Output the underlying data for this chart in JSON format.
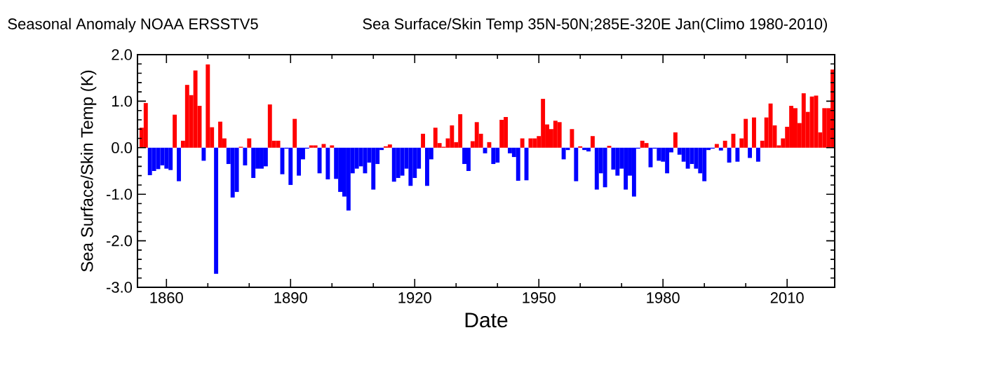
{
  "chart_data": {
    "type": "bar",
    "title": "Seasonal Anomaly NOAA ERSSTV5",
    "subtitle": "Sea Surface/Skin Temp 35N-50N;285E-320E Jan(Climo 1980-2010)",
    "xlabel": "Date",
    "ylabel": "Sea Surface/Skin Temp (K)",
    "x": [
      1854,
      1855,
      1856,
      1857,
      1858,
      1859,
      1860,
      1861,
      1862,
      1863,
      1864,
      1865,
      1866,
      1867,
      1868,
      1869,
      1870,
      1871,
      1872,
      1873,
      1874,
      1875,
      1876,
      1877,
      1878,
      1879,
      1880,
      1881,
      1882,
      1883,
      1884,
      1885,
      1886,
      1887,
      1888,
      1889,
      1890,
      1891,
      1892,
      1893,
      1894,
      1895,
      1896,
      1897,
      1898,
      1899,
      1900,
      1901,
      1902,
      1903,
      1904,
      1905,
      1906,
      1907,
      1908,
      1909,
      1910,
      1911,
      1912,
      1913,
      1914,
      1915,
      1916,
      1917,
      1918,
      1919,
      1920,
      1921,
      1922,
      1923,
      1924,
      1925,
      1926,
      1927,
      1928,
      1929,
      1930,
      1931,
      1932,
      1933,
      1934,
      1935,
      1936,
      1937,
      1938,
      1939,
      1940,
      1941,
      1942,
      1943,
      1944,
      1945,
      1946,
      1947,
      1948,
      1949,
      1950,
      1951,
      1952,
      1953,
      1954,
      1955,
      1956,
      1957,
      1958,
      1959,
      1960,
      1961,
      1962,
      1963,
      1964,
      1965,
      1966,
      1967,
      1968,
      1969,
      1970,
      1971,
      1972,
      1973,
      1974,
      1975,
      1976,
      1977,
      1978,
      1979,
      1980,
      1981,
      1982,
      1983,
      1984,
      1985,
      1986,
      1987,
      1988,
      1989,
      1990,
      1991,
      1992,
      1993,
      1994,
      1995,
      1996,
      1997,
      1998,
      1999,
      2000,
      2001,
      2002,
      2003,
      2004,
      2005,
      2006,
      2007,
      2008,
      2009,
      2010,
      2011,
      2012,
      2013,
      2014,
      2015,
      2016,
      2017,
      2018,
      2019,
      2020,
      2021
    ],
    "values": [
      0.43,
      0.96,
      -0.59,
      -0.5,
      -0.46,
      -0.38,
      -0.45,
      -0.48,
      0.71,
      -0.72,
      0.15,
      1.35,
      1.13,
      1.66,
      0.9,
      -0.28,
      1.79,
      0.44,
      -2.71,
      0.56,
      0.2,
      -0.35,
      -1.07,
      -0.95,
      0.02,
      -0.38,
      0.2,
      -0.65,
      -0.45,
      -0.45,
      -0.4,
      0.93,
      0.15,
      0.15,
      -0.57,
      -0.02,
      -0.8,
      0.62,
      -0.6,
      -0.25,
      -0.02,
      0.05,
      0.05,
      -0.55,
      0.08,
      -0.68,
      0.05,
      -0.67,
      -0.95,
      -1.05,
      -1.35,
      -0.55,
      -0.45,
      -0.4,
      -0.55,
      -0.32,
      -0.9,
      -0.35,
      -0.05,
      0.03,
      0.07,
      -0.73,
      -0.65,
      -0.6,
      -0.45,
      -0.82,
      -0.65,
      -0.45,
      0.3,
      -0.82,
      -0.25,
      0.43,
      0.1,
      0.02,
      0.2,
      0.48,
      0.12,
      0.72,
      -0.35,
      -0.5,
      0.14,
      0.55,
      0.3,
      -0.12,
      0.12,
      -0.35,
      -0.32,
      0.6,
      0.66,
      -0.12,
      -0.2,
      -0.71,
      0.2,
      -0.7,
      0.2,
      0.2,
      0.25,
      1.05,
      0.5,
      0.4,
      0.58,
      0.55,
      -0.25,
      -0.05,
      0.4,
      -0.72,
      0.03,
      -0.05,
      -0.08,
      0.25,
      -0.9,
      -0.55,
      -0.85,
      0.04,
      -0.47,
      -0.6,
      -0.45,
      -0.9,
      -0.6,
      -1.05,
      -0.02,
      0.15,
      0.1,
      -0.42,
      -0.02,
      -0.28,
      -0.3,
      -0.55,
      -0.1,
      0.33,
      -0.15,
      -0.3,
      -0.45,
      -0.35,
      -0.45,
      -0.55,
      -0.72,
      -0.05,
      -0.02,
      0.08,
      -0.06,
      0.15,
      -0.32,
      0.3,
      -0.3,
      0.2,
      0.62,
      -0.22,
      0.65,
      -0.3,
      0.15,
      0.65,
      0.95,
      0.48,
      0.05,
      0.2,
      0.45,
      0.9,
      0.85,
      0.53,
      1.17,
      0.77,
      1.1,
      1.12,
      0.33,
      0.85,
      0.85,
      1.68
    ],
    "colors": [
      "#ff0000",
      "#ff0000",
      "#0000ff",
      "#0000ff",
      "#0000ff",
      "#0000ff",
      "#0000ff",
      "#0000ff",
      "#ff0000",
      "#0000ff",
      "#ff0000",
      "#ff0000",
      "#ff0000",
      "#ff0000",
      "#ff0000",
      "#0000ff",
      "#ff0000",
      "#ff0000",
      "#0000ff",
      "#ff0000",
      "#ff0000",
      "#0000ff",
      "#0000ff",
      "#0000ff",
      "#ff0000",
      "#0000ff",
      "#ff0000",
      "#0000ff",
      "#0000ff",
      "#0000ff",
      "#0000ff",
      "#ff0000",
      "#ff0000",
      "#ff0000",
      "#0000ff",
      "#0000ff",
      "#0000ff",
      "#ff0000",
      "#0000ff",
      "#0000ff",
      "#0000ff",
      "#ff0000",
      "#ff0000",
      "#0000ff",
      "#ff0000",
      "#0000ff",
      "#ff0000",
      "#0000ff",
      "#0000ff",
      "#0000ff",
      "#0000ff",
      "#0000ff",
      "#0000ff",
      "#0000ff",
      "#0000ff",
      "#0000ff",
      "#0000ff",
      "#0000ff",
      "#0000ff",
      "#ff0000",
      "#ff0000",
      "#0000ff",
      "#0000ff",
      "#0000ff",
      "#0000ff",
      "#0000ff",
      "#0000ff",
      "#0000ff",
      "#ff0000",
      "#0000ff",
      "#0000ff",
      "#ff0000",
      "#ff0000",
      "#ff0000",
      "#ff0000",
      "#ff0000",
      "#ff0000",
      "#ff0000",
      "#0000ff",
      "#0000ff",
      "#ff0000",
      "#ff0000",
      "#ff0000",
      "#0000ff",
      "#ff0000",
      "#0000ff",
      "#0000ff",
      "#ff0000",
      "#ff0000",
      "#0000ff",
      "#0000ff",
      "#0000ff",
      "#ff0000",
      "#0000ff",
      "#ff0000",
      "#ff0000",
      "#ff0000",
      "#ff0000",
      "#ff0000",
      "#ff0000",
      "#ff0000",
      "#ff0000",
      "#0000ff",
      "#0000ff",
      "#ff0000",
      "#0000ff",
      "#ff0000",
      "#0000ff",
      "#0000ff",
      "#ff0000",
      "#0000ff",
      "#0000ff",
      "#0000ff",
      "#ff0000",
      "#0000ff",
      "#0000ff",
      "#0000ff",
      "#0000ff",
      "#0000ff",
      "#0000ff",
      "#0000ff",
      "#ff0000",
      "#ff0000",
      "#0000ff",
      "#0000ff",
      "#0000ff",
      "#0000ff",
      "#0000ff",
      "#0000ff",
      "#ff0000",
      "#0000ff",
      "#0000ff",
      "#0000ff",
      "#0000ff",
      "#0000ff",
      "#0000ff",
      "#0000ff",
      "#0000ff",
      "#0000ff",
      "#ff0000",
      "#0000ff",
      "#ff0000",
      "#0000ff",
      "#ff0000",
      "#0000ff",
      "#ff0000",
      "#ff0000",
      "#0000ff",
      "#ff0000",
      "#0000ff",
      "#ff0000",
      "#ff0000",
      "#ff0000",
      "#ff0000",
      "#ff0000",
      "#ff0000",
      "#ff0000",
      "#ff0000",
      "#ff0000",
      "#ff0000",
      "#ff0000",
      "#ff0000",
      "#ff0000",
      "#ff0000",
      "#ff0000",
      "#ff0000",
      "#ff0000",
      "#ff0000"
    ],
    "xlim": [
      1853,
      2021.5
    ],
    "ylim": [
      -3,
      2
    ],
    "xticks": [
      1860,
      1890,
      1920,
      1950,
      1980,
      2010
    ],
    "yticks": [
      {
        "value": -3,
        "label": "-3.0"
      },
      {
        "value": -2,
        "label": "-2.0"
      },
      {
        "value": -1,
        "label": "-1.0"
      },
      {
        "value": 0,
        "label": "0.0"
      },
      {
        "value": 1,
        "label": "1.0"
      },
      {
        "value": 2,
        "label": "2.0"
      }
    ]
  }
}
